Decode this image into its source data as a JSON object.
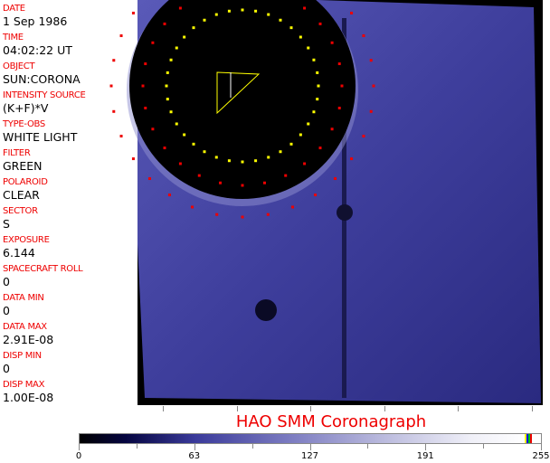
{
  "fields": [
    {
      "label": "DATE",
      "value": "1 Sep 1986"
    },
    {
      "label": "TIME",
      "value": "04:02:22 UT"
    },
    {
      "label": "OBJECT",
      "value": "SUN:CORONA"
    },
    {
      "label": "INTENSITY SOURCE",
      "value": "(K+F)*V"
    },
    {
      "label": "TYPE-OBS",
      "value": "WHITE LIGHT"
    },
    {
      "label": "FILTER",
      "value": "GREEN"
    },
    {
      "label": "POLAROID",
      "value": "CLEAR"
    },
    {
      "label": "SECTOR",
      "value": "S"
    },
    {
      "label": "EXPOSURE",
      "value": "6.144"
    },
    {
      "label": "SPACECRAFT ROLL",
      "value": "0"
    },
    {
      "label": "DATA MIN",
      "value": "0"
    },
    {
      "label": "DATA MAX",
      "value": "2.91E-08"
    },
    {
      "label": "DISP MIN",
      "value": "0"
    },
    {
      "label": "DISP MAX",
      "value": "1.00E-08"
    }
  ],
  "title": "HAO   SMM Coronagraph",
  "colorbar": {
    "ticks": [
      "0",
      "63",
      "127",
      "191",
      "255"
    ],
    "min": 0,
    "max": 255,
    "colors": {
      "low": "#000000",
      "mid": "#7a7ac0",
      "high": "#ffffff"
    }
  },
  "colors": {
    "label": "#ee0000",
    "image_tint": "#3c3ca0"
  }
}
